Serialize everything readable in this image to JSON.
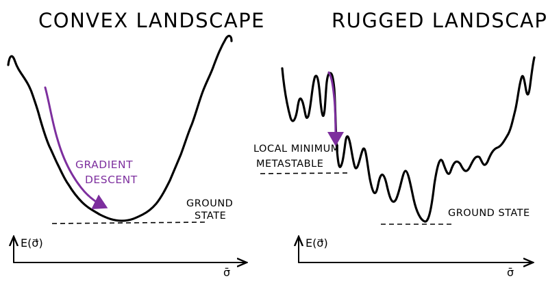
{
  "panels": {
    "convex": {
      "title": "CONVEX LANDSCAPE",
      "gradient_label_line1": "GRADIENT",
      "gradient_label_line2": "DESCENT",
      "ground_label_line1": "GROUND",
      "ground_label_line2": "STATE",
      "y_axis_label": "E(σ⃗)",
      "x_axis_label": "σ̄"
    },
    "rugged": {
      "title": "RUGGED LANDSCAPE",
      "local_label_line1": "LOCAL MINIMUM",
      "local_label_line2": "METASTABLE",
      "ground_label": "GROUND STATE",
      "y_axis_label": "E(σ⃗)",
      "x_axis_label": "σ̄"
    }
  },
  "colors": {
    "ink": "#000000",
    "accent": "#7d2f9e",
    "background": "#ffffff"
  }
}
